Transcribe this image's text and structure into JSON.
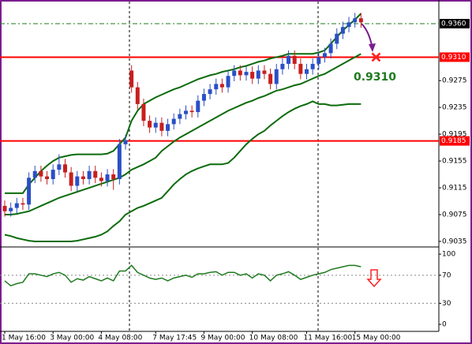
{
  "chart_data": {
    "type": "candlestick",
    "categories": [
      "1 May 16:00",
      null,
      null,
      null,
      null,
      null,
      null,
      null,
      "3 May 00:00",
      null,
      null,
      null,
      null,
      null,
      null,
      null,
      "4 May 08:00",
      null,
      null,
      null,
      null,
      null,
      null,
      null,
      null,
      "7 May 17:45",
      null,
      null,
      null,
      null,
      null,
      null,
      null,
      "9 May 00:00",
      null,
      null,
      null,
      null,
      null,
      null,
      null,
      "10 May 08:00",
      null,
      null,
      null,
      null,
      null,
      null,
      null,
      null,
      "11 May 16:00",
      null,
      null,
      null,
      null,
      null,
      null,
      null,
      "15 May 00:00",
      null
    ],
    "open": [
      0.9088,
      0.908,
      0.9085,
      0.9092,
      0.909,
      0.913,
      0.914,
      0.9132,
      0.9128,
      0.9142,
      0.915,
      0.9138,
      0.9118,
      0.9132,
      0.9128,
      0.914,
      0.913,
      0.9125,
      0.9135,
      0.9128,
      0.918,
      0.929,
      0.9265,
      0.924,
      0.9215,
      0.9205,
      0.9212,
      0.92,
      0.921,
      0.9218,
      0.9225,
      0.923,
      0.9228,
      0.9245,
      0.9255,
      0.9262,
      0.927,
      0.9265,
      0.9282,
      0.929,
      0.9283,
      0.9288,
      0.9278,
      0.929,
      0.9285,
      0.927,
      0.9292,
      0.93,
      0.9312,
      0.93,
      0.9285,
      0.9292,
      0.93,
      0.931,
      0.9316,
      0.933,
      0.9345,
      0.9355,
      0.9362,
      0.9368
    ],
    "high": [
      0.9096,
      0.9093,
      0.91,
      0.91,
      0.9138,
      0.9148,
      0.9148,
      0.914,
      0.915,
      0.9165,
      0.9158,
      0.9146,
      0.914,
      0.914,
      0.9148,
      0.9148,
      0.9138,
      0.9143,
      0.9143,
      0.9188,
      0.9194,
      0.9298,
      0.9273,
      0.9248,
      0.9223,
      0.922,
      0.922,
      0.9218,
      0.9226,
      0.9233,
      0.9238,
      0.9238,
      0.9253,
      0.9263,
      0.927,
      0.9278,
      0.9278,
      0.929,
      0.9298,
      0.9298,
      0.9296,
      0.9296,
      0.9298,
      0.9298,
      0.9293,
      0.93,
      0.9308,
      0.932,
      0.932,
      0.9308,
      0.93,
      0.9308,
      0.9318,
      0.9324,
      0.9338,
      0.9353,
      0.9363,
      0.937,
      0.9376,
      0.9376
    ],
    "low": [
      0.9072,
      0.9072,
      0.9077,
      0.9082,
      0.9082,
      0.9122,
      0.9124,
      0.912,
      0.912,
      0.9134,
      0.913,
      0.911,
      0.911,
      0.912,
      0.912,
      0.9122,
      0.9117,
      0.9117,
      0.9112,
      0.912,
      0.9172,
      0.9257,
      0.9232,
      0.9207,
      0.9197,
      0.9197,
      0.9192,
      0.9192,
      0.9202,
      0.921,
      0.9217,
      0.922,
      0.922,
      0.9237,
      0.9247,
      0.9254,
      0.9257,
      0.9257,
      0.9274,
      0.9275,
      0.9275,
      0.927,
      0.927,
      0.9277,
      0.9262,
      0.9262,
      0.9284,
      0.9292,
      0.9292,
      0.9277,
      0.9277,
      0.9284,
      0.9292,
      0.9302,
      0.9308,
      0.9322,
      0.9337,
      0.9347,
      0.9354,
      0.9354
    ],
    "close": [
      0.908,
      0.9085,
      0.9092,
      0.909,
      0.913,
      0.914,
      0.9132,
      0.9128,
      0.9142,
      0.915,
      0.9138,
      0.9118,
      0.9132,
      0.9128,
      0.914,
      0.913,
      0.9125,
      0.9135,
      0.9128,
      0.918,
      0.9186,
      0.9265,
      0.924,
      0.9215,
      0.9205,
      0.9212,
      0.92,
      0.921,
      0.9218,
      0.9225,
      0.923,
      0.9228,
      0.9245,
      0.9255,
      0.9262,
      0.927,
      0.9265,
      0.9282,
      0.929,
      0.9283,
      0.9288,
      0.9278,
      0.929,
      0.9285,
      0.927,
      0.9292,
      0.93,
      0.9312,
      0.93,
      0.9285,
      0.9292,
      0.93,
      0.931,
      0.9316,
      0.933,
      0.9345,
      0.9355,
      0.9362,
      0.9368,
      0.9362
    ],
    "up_color": "#2a4fc7",
    "down_color": "#c81e1e",
    "bands": {
      "color": "#0b6b0b",
      "upper": [
        0.9107,
        0.9107,
        0.9107,
        0.9107,
        0.912,
        0.913,
        0.914,
        0.9148,
        0.9155,
        0.916,
        0.9162,
        0.9164,
        0.9165,
        0.9165,
        0.9165,
        0.9165,
        0.9165,
        0.9166,
        0.917,
        0.918,
        0.919,
        0.9215,
        0.923,
        0.924,
        0.9245,
        0.925,
        0.9254,
        0.9258,
        0.9262,
        0.9265,
        0.9269,
        0.9273,
        0.9277,
        0.928,
        0.9283,
        0.9285,
        0.9288,
        0.929,
        0.9292,
        0.9295,
        0.9297,
        0.93,
        0.9303,
        0.9305,
        0.9308,
        0.931,
        0.9312,
        0.9315,
        0.9315,
        0.9315,
        0.9315,
        0.9315,
        0.9317,
        0.932,
        0.933,
        0.934,
        0.935,
        0.9358,
        0.9366,
        0.9375
      ],
      "middle": [
        0.9075,
        0.9075,
        0.9076,
        0.9078,
        0.908,
        0.9084,
        0.9088,
        0.9092,
        0.9096,
        0.91,
        0.9103,
        0.9106,
        0.9109,
        0.9112,
        0.9115,
        0.9118,
        0.9121,
        0.9124,
        0.9127,
        0.913,
        0.9135,
        0.9142,
        0.9146,
        0.915,
        0.9155,
        0.916,
        0.917,
        0.9177,
        0.9184,
        0.919,
        0.9195,
        0.92,
        0.9205,
        0.921,
        0.9215,
        0.922,
        0.9225,
        0.923,
        0.9234,
        0.9238,
        0.9242,
        0.9245,
        0.9249,
        0.9252,
        0.9256,
        0.926,
        0.9262,
        0.9265,
        0.9268,
        0.927,
        0.9274,
        0.9278,
        0.9282,
        0.9285,
        0.929,
        0.9295,
        0.93,
        0.9305,
        0.931,
        0.9315
      ],
      "lower": [
        0.9045,
        0.9043,
        0.904,
        0.9038,
        0.9036,
        0.9035,
        0.9035,
        0.9035,
        0.9035,
        0.9035,
        0.9035,
        0.9035,
        0.9036,
        0.9038,
        0.904,
        0.9042,
        0.9045,
        0.905,
        0.9058,
        0.9065,
        0.9075,
        0.908,
        0.9085,
        0.9088,
        0.9092,
        0.9096,
        0.91,
        0.911,
        0.912,
        0.9128,
        0.9135,
        0.914,
        0.9144,
        0.9147,
        0.915,
        0.915,
        0.915,
        0.9152,
        0.916,
        0.917,
        0.918,
        0.9188,
        0.9195,
        0.92,
        0.9208,
        0.9215,
        0.9222,
        0.9228,
        0.9233,
        0.9237,
        0.924,
        0.9244,
        0.924,
        0.924,
        0.9238,
        0.9238,
        0.9239,
        0.924,
        0.924,
        0.924
      ]
    },
    "ylim": [
      0.90279,
      0.93953
    ],
    "yticks": [
      0.9035,
      0.9075,
      0.9115,
      0.9155,
      0.9195,
      0.9235,
      0.9275
    ],
    "hlines": [
      {
        "value": 0.931,
        "label": "0.9310",
        "color": "#ff0000"
      },
      {
        "value": 0.9185,
        "label": "0.9185",
        "color": "#ff0000"
      }
    ],
    "current": {
      "value": 0.936,
      "label": "0.9360",
      "color": "#1f7a1f"
    },
    "annotation": "0.9310",
    "rsi": {
      "color": "#1f7a1f",
      "ylim": [
        -10,
        108
      ],
      "yticks": [
        0,
        30,
        70,
        100
      ],
      "levels": [
        70,
        30
      ],
      "values": [
        62,
        55,
        58,
        60,
        72,
        72,
        70,
        68,
        72,
        74,
        70,
        60,
        65,
        63,
        68,
        65,
        62,
        66,
        62,
        76,
        76,
        84,
        74,
        70,
        66,
        64,
        66,
        62,
        66,
        68,
        70,
        67,
        72,
        72,
        74,
        75,
        70,
        74,
        74,
        70,
        72,
        66,
        72,
        70,
        62,
        70,
        72,
        75,
        70,
        64,
        67,
        70,
        72,
        74,
        78,
        80,
        82,
        84,
        84,
        82
      ]
    }
  }
}
